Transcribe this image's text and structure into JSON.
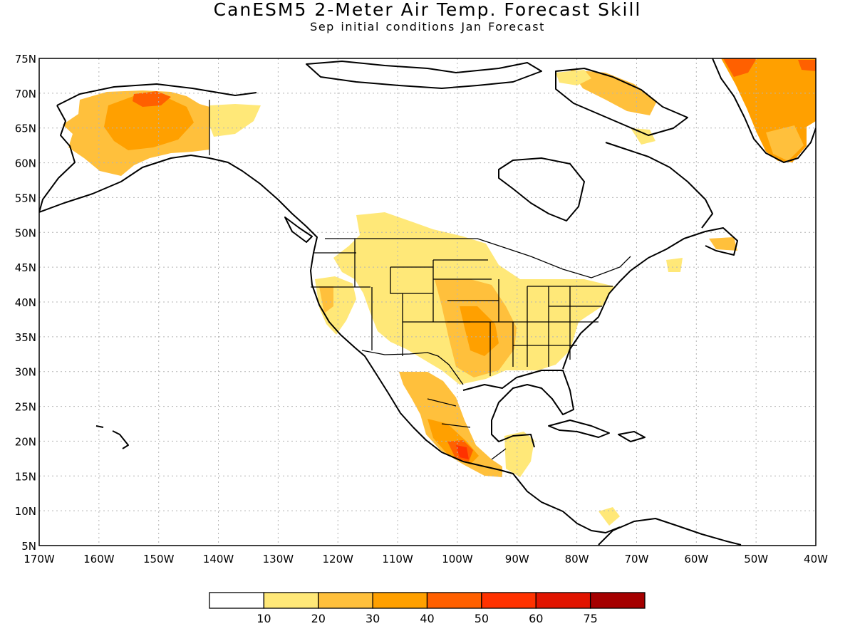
{
  "title": "CanESM5 2-Meter Air Temp. Forecast Skill",
  "subtitle": "Sep initial conditions  Jan Forecast",
  "map": {
    "lon_range": [
      -170,
      -40
    ],
    "lat_range": [
      5,
      75
    ],
    "lat_ticks": [
      "5N",
      "10N",
      "15N",
      "20N",
      "25N",
      "30N",
      "35N",
      "40N",
      "45N",
      "50N",
      "55N",
      "60N",
      "65N",
      "70N",
      "75N"
    ],
    "lon_ticks": [
      "170W",
      "160W",
      "150W",
      "140W",
      "130W",
      "120W",
      "110W",
      "100W",
      "90W",
      "80W",
      "70W",
      "60W",
      "50W",
      "40W"
    ],
    "grid": "dotted"
  },
  "legend": {
    "labels": [
      "10",
      "20",
      "30",
      "40",
      "50",
      "60",
      "75"
    ],
    "colors": [
      "#ffffff",
      "#ffe878",
      "#ffc03c",
      "#ffa000",
      "#ff6000",
      "#ff3200",
      "#e11400",
      "#a50000"
    ]
  }
}
